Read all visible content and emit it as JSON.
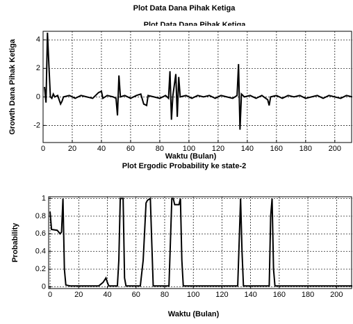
{
  "chart_data": [
    {
      "type": "line",
      "title": "Plot Data Dana Pihak Ketiga",
      "inner_title": "Plot Data Dana Pihak Ketiga",
      "x_label": "Waktu (Bulan)",
      "y_label": "Growth Dana Pihak Ketiga",
      "grid": true,
      "xlim": [
        0,
        212
      ],
      "ylim": [
        -3.2,
        4.6
      ],
      "xticks": [
        0,
        20,
        40,
        60,
        80,
        100,
        120,
        140,
        160,
        180,
        200
      ],
      "yticks": [
        -2,
        0,
        2,
        4
      ],
      "series": [
        {
          "color": "#000000",
          "x": [
            1,
            2,
            3,
            4,
            5,
            6,
            7,
            8,
            10,
            12,
            13,
            14,
            18,
            22,
            26,
            30,
            34,
            38,
            40,
            41,
            44,
            48,
            50,
            51,
            52,
            53,
            56,
            60,
            64,
            67,
            69,
            71,
            72,
            76,
            80,
            84,
            86,
            87,
            88,
            89,
            91,
            92,
            93,
            94,
            98,
            102,
            106,
            110,
            114,
            118,
            122,
            126,
            130,
            133,
            134,
            135,
            136,
            138,
            142,
            146,
            150,
            154,
            155,
            156,
            160,
            164,
            168,
            172,
            176,
            180,
            184,
            188,
            192,
            196,
            200,
            204,
            208,
            212
          ],
          "values": [
            0.7,
            -0.4,
            4.5,
            2.2,
            0,
            -0.1,
            0.2,
            0,
            0.1,
            -0.5,
            -0.3,
            0,
            0.1,
            -0.1,
            0.1,
            0,
            -0.1,
            0.3,
            0.4,
            -0.1,
            0.1,
            0,
            -0.1,
            -1.3,
            1.5,
            0,
            0.1,
            -0.1,
            0.1,
            0.2,
            -0.5,
            -0.6,
            0.1,
            0,
            -0.1,
            0.1,
            -0.1,
            1.8,
            -1.6,
            0.1,
            1.6,
            -1.4,
            1.4,
            0,
            0.1,
            -0.1,
            0.1,
            0,
            0.1,
            -0.1,
            0.1,
            0,
            -0.1,
            0.1,
            2.3,
            -2.3,
            0.2,
            0,
            0.1,
            -0.1,
            0.1,
            -0.2,
            -0.6,
            0,
            0.1,
            -0.1,
            0.1,
            0,
            0.1,
            -0.1,
            0,
            0.1,
            -0.1,
            0.1,
            0,
            -0.1,
            0.1,
            0
          ]
        }
      ]
    },
    {
      "type": "line",
      "title": "Plot Ergodic Probability ke state-2",
      "x_label": "Waktu (Bulan)",
      "y_label": "Probability",
      "grid": true,
      "xlim": [
        -1,
        211
      ],
      "ylim": [
        -0.02,
        1.02
      ],
      "xticks": [
        0,
        20,
        40,
        60,
        80,
        100,
        120,
        140,
        160,
        180,
        200
      ],
      "yticks": [
        0,
        0.2,
        0.4,
        0.6,
        0.8,
        1
      ],
      "series": [
        {
          "color": "#000000",
          "x": [
            0,
            1,
            5,
            7,
            8,
            9,
            10,
            11,
            14,
            34,
            37,
            39,
            40,
            41,
            47,
            48,
            49,
            51,
            52,
            53,
            63,
            65,
            67,
            68,
            70,
            71,
            72,
            83,
            84,
            85,
            86,
            87,
            90,
            91,
            92,
            93,
            131,
            132,
            133,
            134,
            135,
            153,
            154,
            155,
            156,
            157,
            211
          ],
          "values": [
            0.85,
            0.65,
            0.64,
            0.6,
            0.62,
            1.0,
            0.2,
            0.02,
            0.01,
            0.01,
            0.05,
            0.1,
            0.05,
            0.01,
            0.01,
            0.3,
            1.0,
            1.0,
            0.1,
            0.01,
            0.01,
            0.3,
            0.95,
            0.98,
            1.0,
            0.5,
            0.01,
            0.01,
            0.5,
            1.0,
            1.0,
            0.93,
            0.93,
            1.0,
            0.3,
            0.01,
            0.01,
            0.5,
            1.0,
            0.4,
            0.01,
            0.01,
            0.8,
            1.0,
            0.2,
            0.01,
            0.01
          ]
        }
      ]
    }
  ]
}
